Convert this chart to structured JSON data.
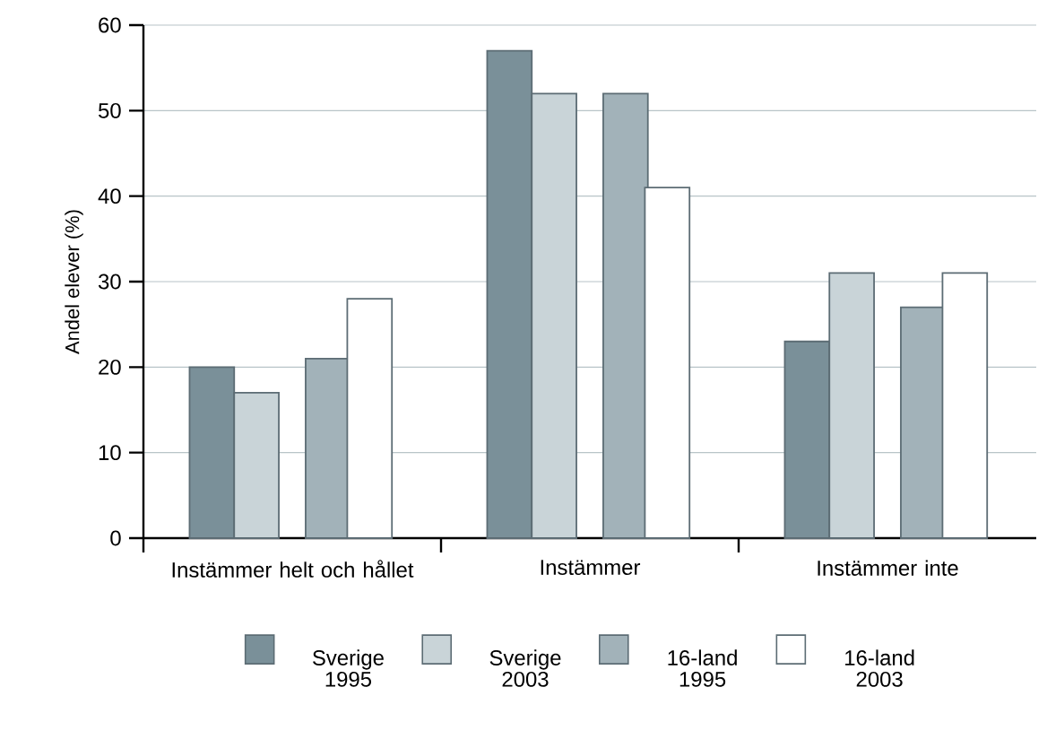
{
  "chart_data": {
    "type": "bar",
    "ylabel": "Andel elever (%)",
    "categories": [
      "Instämmer helt och hållet",
      "Instämmer",
      "Instämmer inte"
    ],
    "series": [
      {
        "name": "Sverige 1995",
        "color": "#7a9099",
        "values": [
          20,
          57,
          23
        ]
      },
      {
        "name": "Sverige 2003",
        "color": "#c9d4d8",
        "values": [
          17,
          52,
          31
        ]
      },
      {
        "name": "16-land 1995",
        "color": "#a2b2b9",
        "values": [
          21,
          52,
          27
        ]
      },
      {
        "name": "16-land 2003",
        "color": "#ffffff",
        "values": [
          28,
          41,
          31
        ]
      }
    ],
    "ylim": [
      0,
      60
    ],
    "yticks": [
      0,
      10,
      20,
      30,
      40,
      50,
      60
    ],
    "grid": "y",
    "legend": "bottom"
  }
}
